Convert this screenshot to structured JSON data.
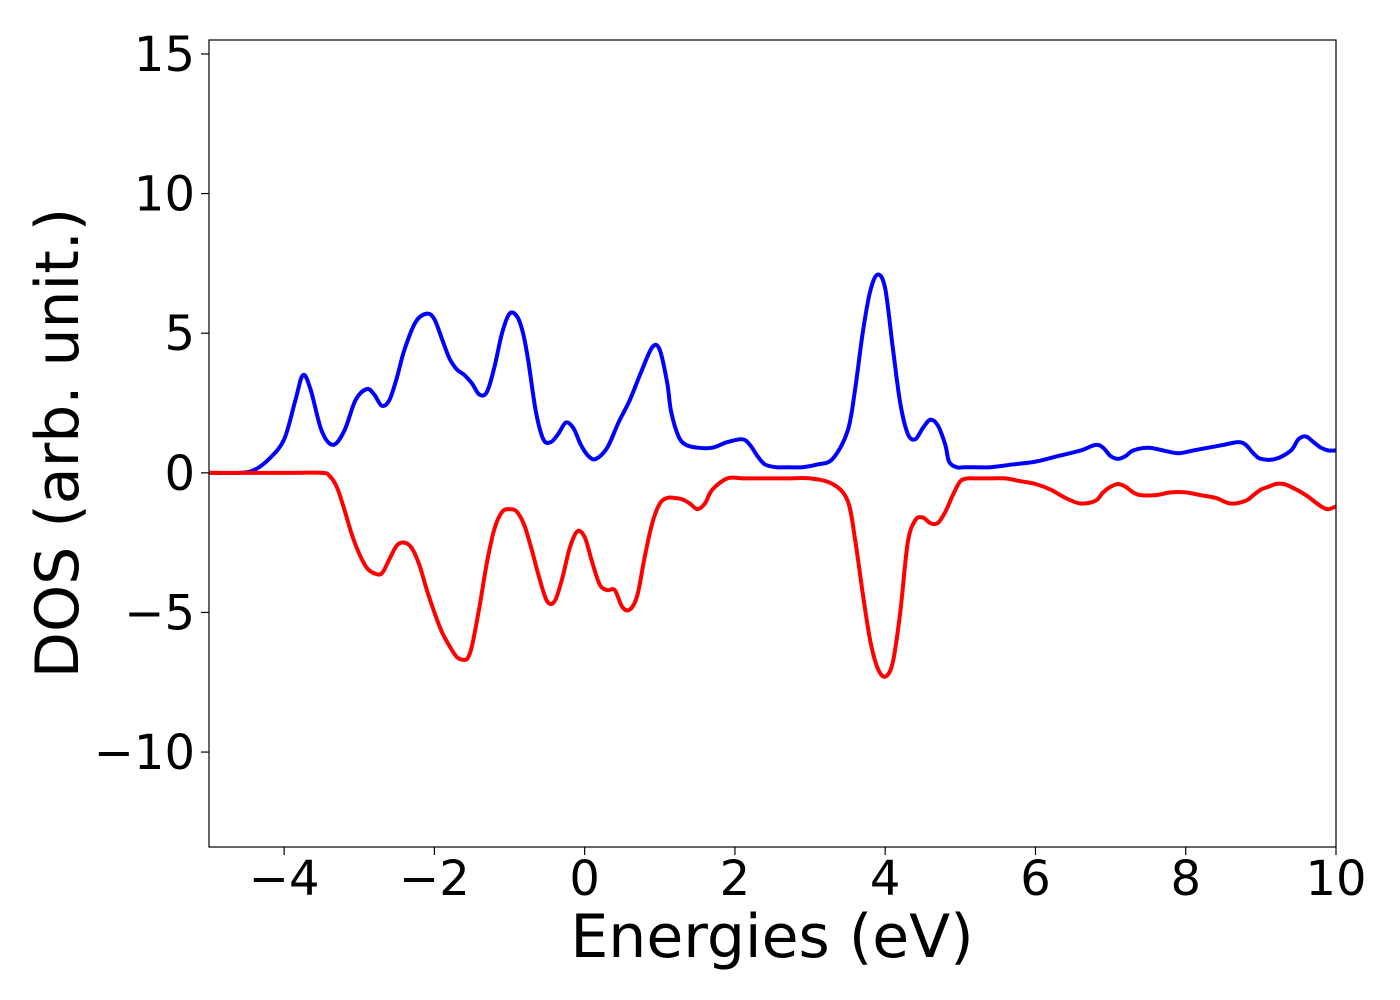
{
  "chart_data": {
    "type": "line",
    "title": "",
    "xlabel": "Energies (eV)",
    "ylabel": "DOS (arb. unit.)",
    "xlim": [
      -5,
      10
    ],
    "ylim": [
      -13.4,
      15.5
    ],
    "x_ticks": [
      -4,
      -2,
      0,
      2,
      4,
      6,
      8,
      10
    ],
    "x_tick_labels": [
      "−4",
      "−2",
      "0",
      "2",
      "4",
      "6",
      "8",
      "10"
    ],
    "y_ticks": [
      -10,
      -5,
      0,
      5,
      10,
      15
    ],
    "y_tick_labels": [
      "−10",
      "−5",
      "0",
      "5",
      "10",
      "15"
    ],
    "grid": false,
    "legend": "none",
    "series": [
      {
        "color": "#0000ff",
        "x": [
          -5.0,
          -4.6,
          -4.4,
          -4.2,
          -4.0,
          -3.85,
          -3.75,
          -3.65,
          -3.5,
          -3.35,
          -3.2,
          -3.05,
          -2.9,
          -2.8,
          -2.7,
          -2.6,
          -2.5,
          -2.4,
          -2.25,
          -2.1,
          -2.0,
          -1.9,
          -1.8,
          -1.7,
          -1.6,
          -1.5,
          -1.4,
          -1.3,
          -1.2,
          -1.1,
          -1.0,
          -0.9,
          -0.82,
          -0.75,
          -0.65,
          -0.55,
          -0.45,
          -0.35,
          -0.25,
          -0.15,
          -0.05,
          0.05,
          0.15,
          0.3,
          0.45,
          0.6,
          0.75,
          0.9,
          1.0,
          1.1,
          1.15,
          1.25,
          1.35,
          1.5,
          1.7,
          1.9,
          2.1,
          2.2,
          2.3,
          2.4,
          2.55,
          2.7,
          2.9,
          3.1,
          3.3,
          3.5,
          3.6,
          3.7,
          3.8,
          3.9,
          4.0,
          4.1,
          4.2,
          4.3,
          4.4,
          4.5,
          4.6,
          4.7,
          4.8,
          4.85,
          4.95,
          5.05,
          5.2,
          5.4,
          5.7,
          6.0,
          6.3,
          6.6,
          6.8,
          6.9,
          7.0,
          7.1,
          7.2,
          7.3,
          7.5,
          7.7,
          7.9,
          8.1,
          8.3,
          8.5,
          8.7,
          8.8,
          8.9,
          9.0,
          9.2,
          9.4,
          9.5,
          9.6,
          9.7,
          9.8,
          9.9,
          10.0
        ],
        "y": [
          0.0,
          0.0,
          0.1,
          0.5,
          1.2,
          2.6,
          3.5,
          3.0,
          1.5,
          1.0,
          1.5,
          2.6,
          3.0,
          2.8,
          2.4,
          2.6,
          3.4,
          4.4,
          5.4,
          5.7,
          5.5,
          4.8,
          4.1,
          3.7,
          3.5,
          3.2,
          2.8,
          2.9,
          3.8,
          5.0,
          5.7,
          5.6,
          5.0,
          4.0,
          2.2,
          1.2,
          1.1,
          1.4,
          1.8,
          1.6,
          1.0,
          0.6,
          0.5,
          0.9,
          1.8,
          2.6,
          3.6,
          4.5,
          4.4,
          3.2,
          2.2,
          1.3,
          1.0,
          0.9,
          0.9,
          1.1,
          1.2,
          1.0,
          0.6,
          0.3,
          0.2,
          0.2,
          0.2,
          0.3,
          0.5,
          1.5,
          3.0,
          5.0,
          6.5,
          7.1,
          6.6,
          4.5,
          2.5,
          1.4,
          1.2,
          1.6,
          1.9,
          1.7,
          1.0,
          0.4,
          0.2,
          0.2,
          0.2,
          0.2,
          0.3,
          0.4,
          0.6,
          0.8,
          1.0,
          0.9,
          0.6,
          0.5,
          0.6,
          0.8,
          0.9,
          0.8,
          0.7,
          0.8,
          0.9,
          1.0,
          1.1,
          1.0,
          0.7,
          0.5,
          0.5,
          0.8,
          1.2,
          1.3,
          1.1,
          0.9,
          0.8,
          0.8
        ]
      },
      {
        "color": "#ff0000",
        "x": [
          -5.0,
          -4.0,
          -3.5,
          -3.4,
          -3.3,
          -3.2,
          -3.1,
          -3.0,
          -2.9,
          -2.8,
          -2.7,
          -2.6,
          -2.5,
          -2.4,
          -2.3,
          -2.2,
          -2.1,
          -2.0,
          -1.9,
          -1.8,
          -1.7,
          -1.6,
          -1.55,
          -1.5,
          -1.4,
          -1.3,
          -1.2,
          -1.1,
          -1.0,
          -0.9,
          -0.8,
          -0.7,
          -0.6,
          -0.5,
          -0.4,
          -0.3,
          -0.2,
          -0.1,
          0.0,
          0.1,
          0.2,
          0.3,
          0.4,
          0.5,
          0.6,
          0.7,
          0.8,
          0.9,
          1.0,
          1.1,
          1.2,
          1.3,
          1.4,
          1.5,
          1.6,
          1.7,
          1.9,
          2.1,
          2.2,
          2.3,
          2.4,
          2.5,
          2.7,
          3.0,
          3.3,
          3.5,
          3.6,
          3.7,
          3.8,
          3.9,
          4.0,
          4.1,
          4.2,
          4.3,
          4.4,
          4.5,
          4.6,
          4.7,
          4.8,
          4.9,
          5.0,
          5.1,
          5.2,
          5.4,
          5.6,
          5.8,
          6.0,
          6.2,
          6.4,
          6.6,
          6.8,
          6.9,
          7.0,
          7.1,
          7.2,
          7.3,
          7.4,
          7.6,
          7.8,
          8.0,
          8.2,
          8.4,
          8.6,
          8.8,
          8.9,
          9.0,
          9.1,
          9.2,
          9.3,
          9.4,
          9.6,
          9.8,
          9.9,
          10.0
        ],
        "y": [
          0.0,
          0.0,
          0.0,
          -0.1,
          -0.5,
          -1.3,
          -2.2,
          -2.9,
          -3.4,
          -3.6,
          -3.6,
          -3.1,
          -2.6,
          -2.5,
          -2.7,
          -3.3,
          -4.2,
          -5.0,
          -5.7,
          -6.2,
          -6.6,
          -6.7,
          -6.6,
          -6.2,
          -4.8,
          -3.2,
          -2.0,
          -1.4,
          -1.3,
          -1.4,
          -1.9,
          -2.8,
          -3.8,
          -4.6,
          -4.6,
          -3.8,
          -2.7,
          -2.1,
          -2.3,
          -3.2,
          -4.0,
          -4.2,
          -4.2,
          -4.8,
          -4.9,
          -4.4,
          -3.0,
          -1.8,
          -1.1,
          -0.9,
          -0.9,
          -0.95,
          -1.1,
          -1.3,
          -1.1,
          -0.6,
          -0.2,
          -0.2,
          -0.2,
          -0.2,
          -0.2,
          -0.2,
          -0.2,
          -0.2,
          -0.4,
          -1.0,
          -2.4,
          -4.3,
          -6.0,
          -7.0,
          -7.3,
          -6.8,
          -5.0,
          -2.5,
          -1.7,
          -1.6,
          -1.8,
          -1.8,
          -1.4,
          -0.8,
          -0.3,
          -0.2,
          -0.2,
          -0.2,
          -0.2,
          -0.3,
          -0.4,
          -0.6,
          -0.9,
          -1.1,
          -1.0,
          -0.7,
          -0.5,
          -0.4,
          -0.5,
          -0.7,
          -0.8,
          -0.8,
          -0.7,
          -0.7,
          -0.8,
          -0.9,
          -1.1,
          -1.0,
          -0.8,
          -0.6,
          -0.5,
          -0.4,
          -0.4,
          -0.5,
          -0.8,
          -1.2,
          -1.3,
          -1.2
        ]
      }
    ]
  }
}
